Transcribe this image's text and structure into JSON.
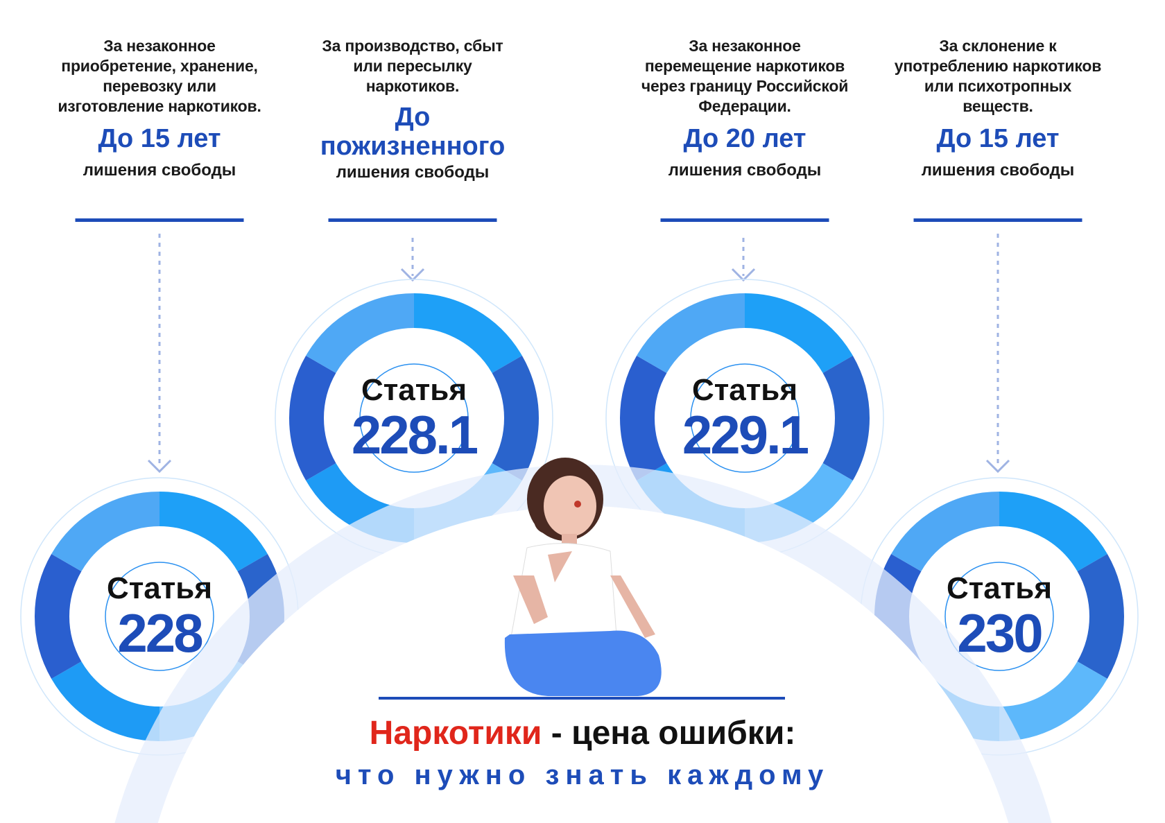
{
  "articles": [
    {
      "description": "За незаконное приобретение, хранение, перевозку или изготовление наркотиков.",
      "term_prefix": "До",
      "term_value": "15",
      "term_suffix": "лет",
      "term_note": "лишения свободы",
      "article_word": "Статья",
      "article_number": "228"
    },
    {
      "description": "За производство, сбыт или пересылку наркотиков.",
      "term_prefix": "До",
      "term_value": "пожизненного",
      "term_suffix": "",
      "term_note": "лишения свободы",
      "article_word": "Статья",
      "article_number": "228.1"
    },
    {
      "description": "За незаконное перемещение наркотиков через границу Российской Федерации.",
      "term_prefix": "До",
      "term_value": "20",
      "term_suffix": "лет",
      "term_note": "лишения свободы",
      "article_word": "Статья",
      "article_number": "229.1"
    },
    {
      "description": "За склонение к употреблению наркотиков или психотропных веществ.",
      "term_prefix": "До",
      "term_value": "15",
      "term_suffix": "лет",
      "term_note": "лишения свободы",
      "article_word": "Статья",
      "article_number": "230"
    }
  ],
  "footer": {
    "title_highlight": "Наркотики",
    "title_rest": " - цена ошибки:",
    "subtitle": "что нужно знать каждому"
  },
  "colors": {
    "accent": "#1d4cb8",
    "highlight": "#e0261b",
    "ring": "#1e9bf5"
  }
}
